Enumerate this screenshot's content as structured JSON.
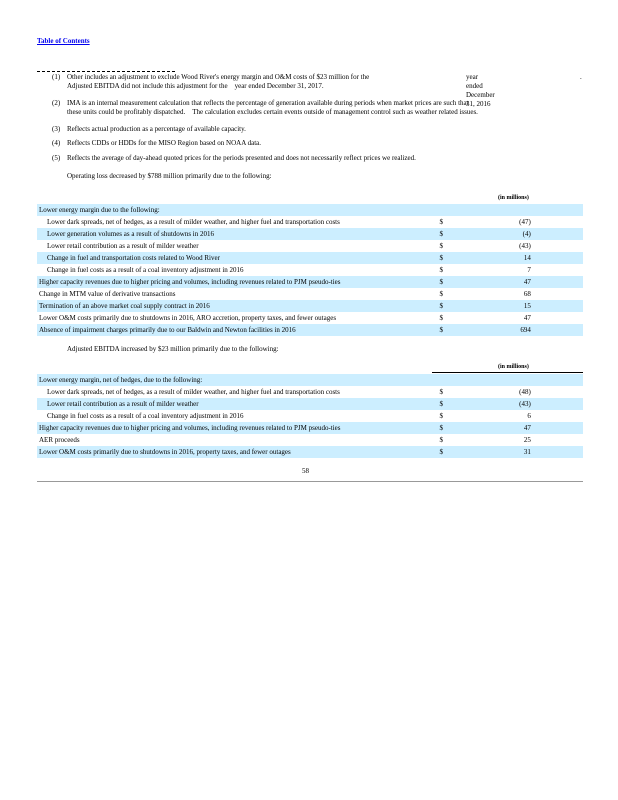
{
  "toc_link": "Table of Contents",
  "footnotes": [
    {
      "num": "(1)",
      "line1": "Other includes an adjustment to exclude Wood River's energy margin and O&M costs of $23 million for the",
      "line1b": "year ended December 31, 2016",
      "line1c": ".",
      "line2": "Adjusted EBITDA did not include this adjustment for the",
      "line2b": "year ended December 31, 2017."
    },
    {
      "num": "(2)",
      "line1": "IMA is an internal measurement calculation that reflects the percentage of generation available during periods when market prices are such that",
      "line2": "these units could be profitably dispatched.",
      "line2b": "The calculation excludes certain events outside of management control such as weather related issues."
    },
    {
      "num": "(3)",
      "line1": "Reflects actual production as a percentage of available capacity."
    },
    {
      "num": "(4)",
      "line1": "Reflects CDDs or HDDs for the MISO Region based on NOAA data."
    },
    {
      "num": "(5)",
      "line1": "Reflects the average of day-ahead quoted prices for the periods presented and does not necessarily reflect prices we realized."
    }
  ],
  "operating_loss": {
    "intro": "Operating loss decreased by  $788 million   primarily due to the following:",
    "unit_header": "(in millions)",
    "rows": [
      {
        "label": "Lower energy margin due to the following:",
        "indent": false,
        "currency": "",
        "value": ""
      },
      {
        "label": "Lower dark spreads, net of hedges, as a result of milder weather, and higher fuel and transportation costs",
        "indent": true,
        "currency": "$",
        "value": "(47)"
      },
      {
        "label": "Lower generation volumes as a result of shutdowns in 2016",
        "indent": true,
        "currency": "$",
        "value": "(4)"
      },
      {
        "label": "Lower retail contribution as a result of milder weather",
        "indent": true,
        "currency": "$",
        "value": "(43)"
      },
      {
        "label": "Change in fuel and transportation costs related to Wood River",
        "indent": true,
        "currency": "$",
        "value": "14"
      },
      {
        "label": "Change in fuel costs as a result of a coal inventory adjustment in 2016",
        "indent": true,
        "currency": "$",
        "value": "7"
      },
      {
        "label": "Higher capacity revenues due to higher pricing and volumes, including revenues related to PJM pseudo-ties",
        "indent": false,
        "currency": "$",
        "value": "47"
      },
      {
        "label": "Change in MTM value of derivative transactions",
        "indent": false,
        "currency": "$",
        "value": "68"
      },
      {
        "label": "Termination of an above market coal supply contract in 2016",
        "indent": false,
        "currency": "$",
        "value": "15"
      },
      {
        "label": "Lower O&M costs primarily due to shutdowns in 2016, ARO accretion, property taxes, and fewer outages",
        "indent": false,
        "currency": "$",
        "value": "47"
      },
      {
        "label": "Absence of impairment charges primarily due to our Baldwin and Newton facilities in 2016",
        "indent": false,
        "currency": "$",
        "value": "694"
      }
    ]
  },
  "adjusted_ebitda": {
    "intro": "Adjusted EBITDA increased by  $23 million   primarily due to the following:",
    "unit_header": "(in millions)",
    "rows": [
      {
        "label": "Lower energy margin, net of hedges, due to the following:",
        "indent": false,
        "currency": "",
        "value": ""
      },
      {
        "label": "Lower dark spreads, net of hedges, as a result of milder weather, and higher fuel and transportation costs",
        "indent": true,
        "currency": "$",
        "value": "(48)"
      },
      {
        "label": "Lower retail contribution as a result of milder weather",
        "indent": true,
        "currency": "$",
        "value": "(43)"
      },
      {
        "label": "Change in fuel costs as a result of a coal inventory adjustment in 2016",
        "indent": true,
        "currency": "$",
        "value": "6"
      },
      {
        "label": "Higher capacity revenues due to higher pricing and volumes, including revenues related to PJM pseudo-ties",
        "indent": false,
        "currency": "$",
        "value": "47"
      },
      {
        "label": "AER proceeds",
        "indent": false,
        "currency": "$",
        "value": "25"
      },
      {
        "label": "Lower O&M costs primarily due to shutdowns in 2016, property taxes, and fewer outages",
        "indent": false,
        "currency": "$",
        "value": "31"
      }
    ]
  },
  "page_number": "58",
  "colors": {
    "row_stripe": "#cceeff",
    "link": "#0000ee"
  }
}
